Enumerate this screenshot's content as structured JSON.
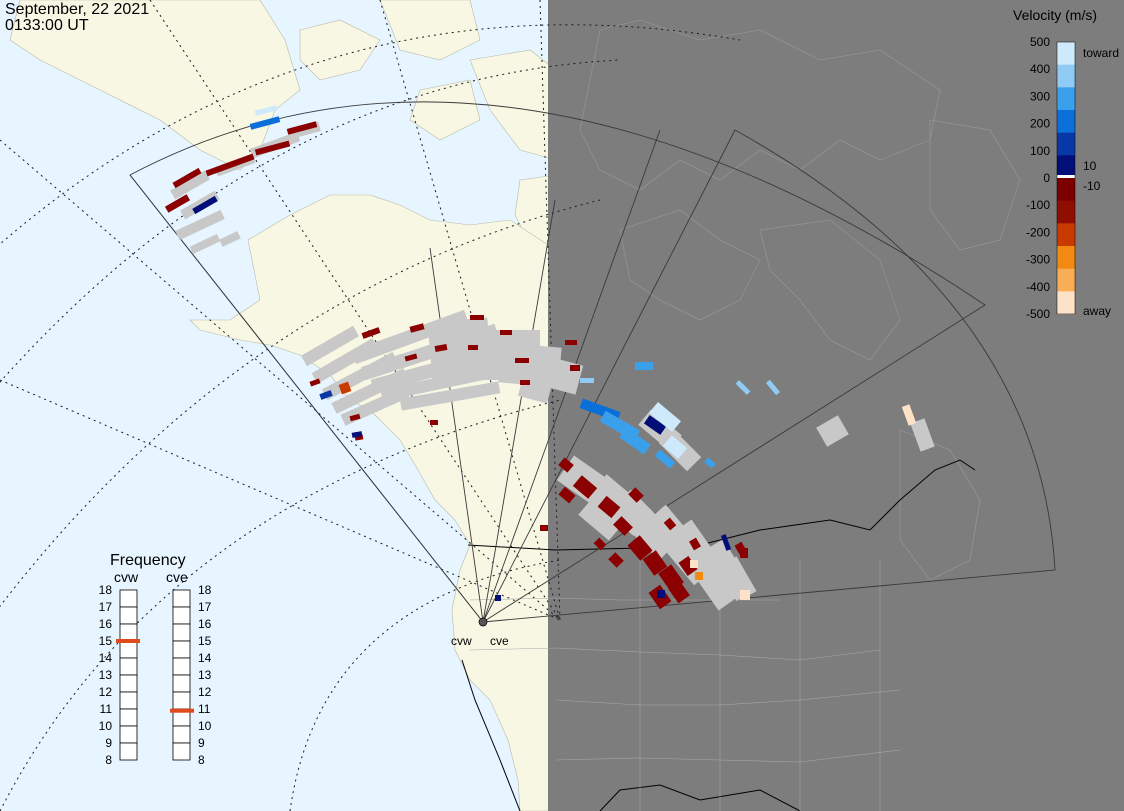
{
  "header": {
    "date": "September, 22 2021",
    "time": "0133:00 UT"
  },
  "stations": [
    {
      "code": "cvw"
    },
    {
      "code": "cve"
    }
  ],
  "colorbar": {
    "title": "Velocity (m/s)",
    "ticks": [
      "500",
      "400",
      "300",
      "200",
      "100",
      "0",
      "-100",
      "-200",
      "-300",
      "-400",
      "-500"
    ],
    "small_ticks": [
      "10",
      "-10"
    ],
    "toward_label": "toward",
    "away_label": "away",
    "colors": [
      "#cde9fb",
      "#8fcbf5",
      "#3aa0ec",
      "#0a6fd9",
      "#0838a6",
      "#030f78",
      "#7a0000",
      "#8f0e00",
      "#c83a00",
      "#f08a10",
      "#f9ad55",
      "#fde1c8"
    ],
    "ground_scatter_color": "#c8c8c8"
  },
  "frequency_panel": {
    "title": "Frequency",
    "scale_min_mhz": 8,
    "scale_max_mhz": 18,
    "left": {
      "label": "cvw",
      "frequency_mhz": 15
    },
    "right": {
      "label": "cve",
      "frequency_mhz": 10.9
    },
    "tick_labels": [
      "18",
      "17",
      "16",
      "15",
      "14",
      "13",
      "12",
      "11",
      "10",
      "9",
      "8"
    ],
    "marker_color": "#e04b1c"
  },
  "map_colors": {
    "ocean": "#e6f5ff",
    "land": "#f8f7e4",
    "night": "#7d7d7d"
  }
}
